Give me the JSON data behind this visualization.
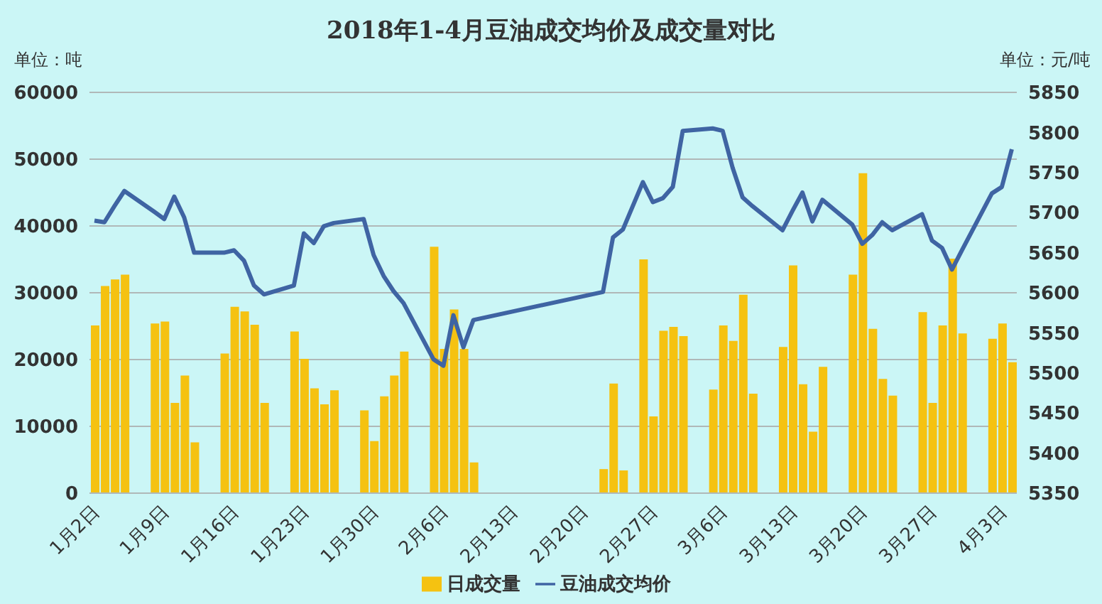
{
  "chart_data": {
    "type": "bar",
    "title": "2018年1-4月豆油成交均价及成交量对比",
    "ylabel": "单位：吨",
    "y2label": "单位：元/吨",
    "x": [
      "2018-01-02",
      "2018-01-03",
      "2018-01-04",
      "2018-01-05",
      "2018-01-08",
      "2018-01-09",
      "2018-01-10",
      "2018-01-11",
      "2018-01-12",
      "2018-01-15",
      "2018-01-16",
      "2018-01-17",
      "2018-01-18",
      "2018-01-19",
      "2018-01-22",
      "2018-01-23",
      "2018-01-24",
      "2018-01-25",
      "2018-01-26",
      "2018-01-29",
      "2018-01-30",
      "2018-01-31",
      "2018-02-01",
      "2018-02-02",
      "2018-02-05",
      "2018-02-06",
      "2018-02-07",
      "2018-02-08",
      "2018-02-09",
      "2018-02-22",
      "2018-02-23",
      "2018-02-24",
      "2018-02-26",
      "2018-02-27",
      "2018-02-28",
      "2018-03-01",
      "2018-03-02",
      "2018-03-05",
      "2018-03-06",
      "2018-03-07",
      "2018-03-08",
      "2018-03-09",
      "2018-03-12",
      "2018-03-13",
      "2018-03-14",
      "2018-03-15",
      "2018-03-16",
      "2018-03-19",
      "2018-03-20",
      "2018-03-21",
      "2018-03-22",
      "2018-03-23",
      "2018-03-26",
      "2018-03-27",
      "2018-03-28",
      "2018-03-29",
      "2018-03-30",
      "2018-04-02",
      "2018-04-03",
      "2018-04-04"
    ],
    "series": [
      {
        "name": "日成交量",
        "color": "#f5c211",
        "values": [
          25100,
          31000,
          32000,
          32700,
          25400,
          25700,
          13500,
          17600,
          7600,
          20900,
          27900,
          27200,
          25200,
          13500,
          24200,
          20100,
          15700,
          13300,
          15400,
          12400,
          7800,
          14500,
          17600,
          21200,
          36900,
          21600,
          27500,
          21600,
          4600,
          3600,
          16400,
          3400,
          35000,
          11500,
          24300,
          24900,
          23500,
          15500,
          25100,
          22800,
          29700,
          14900,
          21900,
          34100,
          16300,
          9200,
          18900,
          32700,
          47900,
          24600,
          17100,
          14600,
          27100,
          13500,
          25100,
          35100,
          23900,
          23100,
          25400,
          19600
        ]
      },
      {
        "name": "豆油成交均价",
        "type": "line",
        "axis": "y2",
        "color": "#3f64a3",
        "values": [
          5690,
          5688,
          5708,
          5727,
          5701,
          5692,
          5720,
          5694,
          5650,
          5650,
          5653,
          5640,
          5609,
          5598,
          5609,
          5674,
          5662,
          5683,
          5687,
          5692,
          5647,
          5621,
          5602,
          5587,
          5517,
          5509,
          5572,
          5532,
          5566,
          5601,
          5669,
          5679,
          5738,
          5713,
          5718,
          5732,
          5802,
          5805,
          5802,
          5756,
          5719,
          5708,
          5678,
          5702,
          5725,
          5689,
          5716,
          5685,
          5661,
          5672,
          5688,
          5678,
          5698,
          5665,
          5656,
          5629,
          5653,
          5724,
          5732,
          5779
        ]
      }
    ],
    "xlim": [
      "2018-01-01T12:00",
      "2018-04-04T12:00"
    ],
    "xticks": [
      {
        "value": "2018-01-02",
        "label": "1月2日"
      },
      {
        "value": "2018-01-09",
        "label": "1月9日"
      },
      {
        "value": "2018-01-16",
        "label": "1月16日"
      },
      {
        "value": "2018-01-23",
        "label": "1月23日"
      },
      {
        "value": "2018-01-30",
        "label": "1月30日"
      },
      {
        "value": "2018-02-06",
        "label": "2月6日"
      },
      {
        "value": "2018-02-13",
        "label": "2月13日"
      },
      {
        "value": "2018-02-20",
        "label": "2月20日"
      },
      {
        "value": "2018-02-27",
        "label": "2月27日"
      },
      {
        "value": "2018-03-06",
        "label": "3月6日"
      },
      {
        "value": "2018-03-13",
        "label": "3月13日"
      },
      {
        "value": "2018-03-20",
        "label": "3月20日"
      },
      {
        "value": "2018-03-27",
        "label": "3月27日"
      },
      {
        "value": "2018-04-03",
        "label": "4月3日"
      }
    ],
    "ylim": [
      0,
      60000
    ],
    "yticks": [
      0,
      10000,
      20000,
      30000,
      40000,
      50000,
      60000
    ],
    "y2lim": [
      5350,
      5850
    ],
    "y2ticks": [
      5350,
      5400,
      5450,
      5500,
      5550,
      5600,
      5650,
      5700,
      5750,
      5800,
      5850
    ],
    "grid": "y",
    "legend": "bottom",
    "marker": "none",
    "line_style": "solid"
  }
}
